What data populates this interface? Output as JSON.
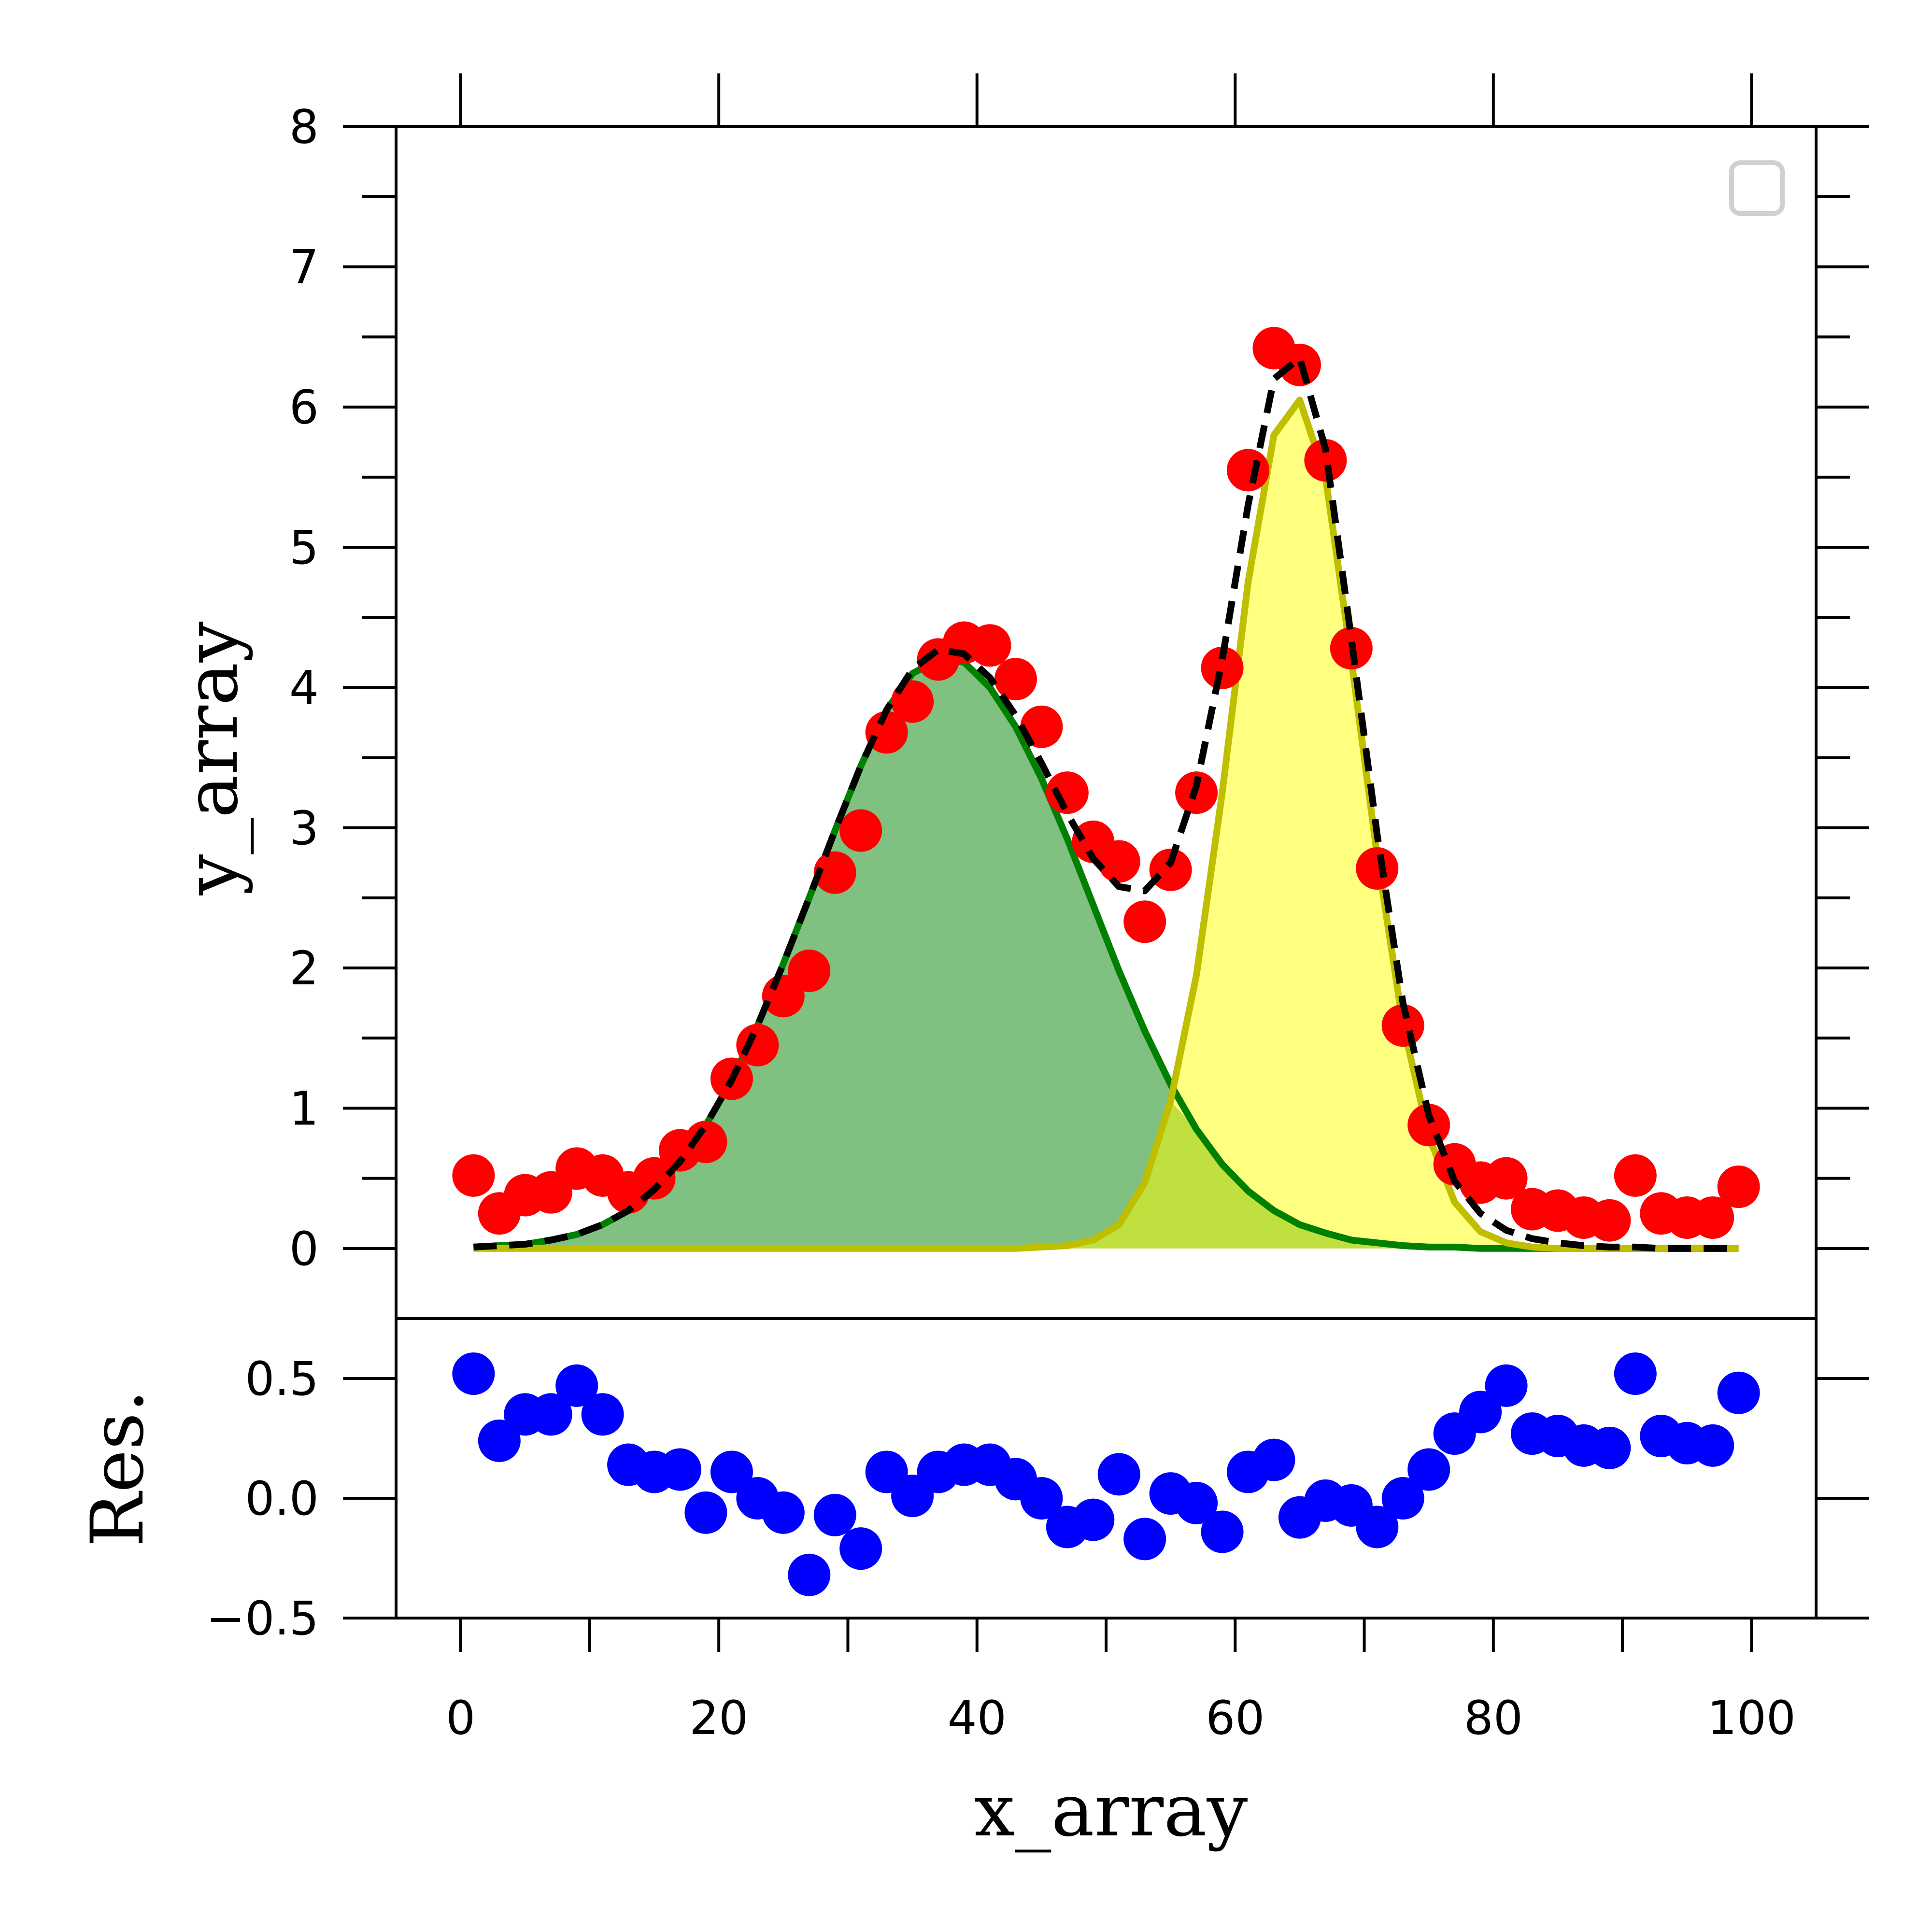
{
  "chart_data": [
    {
      "panel": "main",
      "type": "scatter",
      "xlabel": "",
      "ylabel": "y_array",
      "xlim": [
        -5,
        105
      ],
      "ylim": [
        -0.5,
        8
      ],
      "yticks": [
        0,
        1,
        2,
        3,
        4,
        5,
        6,
        7,
        8
      ],
      "ytick_labels": [
        "0",
        "1",
        "2",
        "3",
        "4",
        "5",
        "6",
        "7",
        "8"
      ],
      "xticks": [
        0,
        20,
        40,
        60,
        80,
        100
      ],
      "legend": "top-right, empty",
      "grid": false,
      "colors": {
        "data": "#ff0000",
        "total_fit": "#000000",
        "component_1_line": "#008000",
        "component_1_fill": "#80c080",
        "component_2_line": "#bfbf00",
        "component_2_fill": "#ffff80",
        "overlap_fill": "#c0e040"
      },
      "series": [
        {
          "style": "markers",
          "x": [
            1,
            3,
            5,
            7,
            9,
            11,
            13,
            15,
            17,
            19,
            21,
            23,
            25,
            27,
            29,
            31,
            33,
            35,
            37,
            39,
            41,
            43,
            45,
            47,
            49,
            51,
            53,
            55,
            57,
            59,
            61,
            63,
            65,
            67,
            69,
            71,
            73,
            75,
            77,
            79,
            81,
            83,
            85,
            87,
            89,
            91,
            93,
            95,
            97,
            99
          ],
          "y": [
            0.52,
            0.25,
            0.38,
            0.4,
            0.57,
            0.52,
            0.4,
            0.5,
            0.7,
            0.76,
            1.21,
            1.45,
            1.8,
            1.98,
            2.68,
            2.98,
            3.68,
            3.9,
            4.2,
            4.32,
            4.3,
            4.06,
            3.72,
            3.25,
            2.9,
            2.76,
            2.33,
            2.7,
            3.25,
            4.14,
            5.55,
            6.42,
            6.3,
            5.62,
            4.28,
            2.71,
            1.59,
            0.88,
            0.6,
            0.47,
            0.5,
            0.28,
            0.27,
            0.22,
            0.2,
            0.52,
            0.25,
            0.22,
            0.22,
            0.44
          ]
        },
        {
          "style": "dashed-line",
          "x": [
            1,
            3,
            5,
            7,
            9,
            11,
            13,
            15,
            17,
            19,
            21,
            23,
            25,
            27,
            29,
            31,
            33,
            35,
            37,
            39,
            41,
            43,
            45,
            47,
            49,
            51,
            53,
            55,
            57,
            59,
            61,
            63,
            65,
            67,
            69,
            71,
            73,
            75,
            77,
            79,
            81,
            83,
            85,
            87,
            89,
            91,
            93,
            95,
            97,
            99
          ],
          "y": [
            0.01,
            0.02,
            0.03,
            0.06,
            0.1,
            0.17,
            0.27,
            0.42,
            0.62,
            0.88,
            1.2,
            1.59,
            2.03,
            2.5,
            2.98,
            3.44,
            3.84,
            4.13,
            4.27,
            4.24,
            4.07,
            3.8,
            3.46,
            3.1,
            2.78,
            2.58,
            2.55,
            2.75,
            3.3,
            4.2,
            5.3,
            6.2,
            6.35,
            5.7,
            4.35,
            2.95,
            1.75,
            0.95,
            0.48,
            0.25,
            0.13,
            0.07,
            0.04,
            0.02,
            0.01,
            0.01,
            0.0,
            0.0,
            0.0,
            0.0
          ]
        },
        {
          "style": "line-filled",
          "x": [
            1,
            3,
            5,
            7,
            9,
            11,
            13,
            15,
            17,
            19,
            21,
            23,
            25,
            27,
            29,
            31,
            33,
            35,
            37,
            39,
            41,
            43,
            45,
            47,
            49,
            51,
            53,
            55,
            57,
            59,
            61,
            63,
            65,
            67,
            69,
            71,
            73,
            75,
            77,
            79,
            81,
            83,
            85,
            87,
            89,
            91,
            93,
            95,
            97,
            99
          ],
          "y": [
            0.01,
            0.02,
            0.03,
            0.06,
            0.1,
            0.17,
            0.27,
            0.42,
            0.62,
            0.88,
            1.2,
            1.59,
            2.03,
            2.5,
            2.98,
            3.44,
            3.84,
            4.1,
            4.2,
            4.18,
            4.0,
            3.72,
            3.35,
            2.92,
            2.45,
            1.98,
            1.55,
            1.17,
            0.85,
            0.6,
            0.41,
            0.27,
            0.17,
            0.11,
            0.06,
            0.04,
            0.02,
            0.01,
            0.01,
            0.0,
            0.0,
            0.0,
            0.0,
            0.0,
            0.0,
            0.0,
            0.0,
            0.0,
            0.0,
            0.0
          ]
        },
        {
          "style": "line-filled",
          "x": [
            1,
            3,
            5,
            7,
            9,
            11,
            13,
            15,
            17,
            19,
            21,
            23,
            25,
            27,
            29,
            31,
            33,
            35,
            37,
            39,
            41,
            43,
            45,
            47,
            49,
            51,
            53,
            55,
            57,
            59,
            61,
            63,
            65,
            67,
            69,
            71,
            73,
            75,
            77,
            79,
            81,
            83,
            85,
            87,
            89,
            91,
            93,
            95,
            97,
            99
          ],
          "y": [
            0.0,
            0.0,
            0.0,
            0.0,
            0.0,
            0.0,
            0.0,
            0.0,
            0.0,
            0.0,
            0.0,
            0.0,
            0.0,
            0.0,
            0.0,
            0.0,
            0.0,
            0.0,
            0.0,
            0.0,
            0.0,
            0.0,
            0.01,
            0.02,
            0.06,
            0.17,
            0.47,
            1.05,
            1.95,
            3.25,
            4.75,
            5.8,
            6.05,
            5.5,
            4.2,
            2.8,
            1.6,
            0.8,
            0.33,
            0.12,
            0.04,
            0.01,
            0.0,
            0.0,
            0.0,
            0.0,
            0.0,
            0.0,
            0.0,
            0.0
          ]
        }
      ]
    },
    {
      "panel": "residuals",
      "type": "scatter",
      "xlabel": "x_array",
      "ylabel": "Res.",
      "xlim": [
        -5,
        105
      ],
      "ylim": [
        -0.5,
        0.75
      ],
      "yticks": [
        -0.5,
        0.0,
        0.5
      ],
      "ytick_labels": [
        "−0.5",
        "0.0",
        "0.5"
      ],
      "xticks": [
        0,
        20,
        40,
        60,
        80,
        100
      ],
      "xtick_labels": [
        "0",
        "20",
        "40",
        "60",
        "80",
        "100"
      ],
      "grid": false,
      "colors": {
        "data": "#0000ff"
      },
      "series": [
        {
          "style": "markers",
          "x": [
            1,
            3,
            5,
            7,
            9,
            11,
            13,
            15,
            17,
            19,
            21,
            23,
            25,
            27,
            29,
            31,
            33,
            35,
            37,
            39,
            41,
            43,
            45,
            47,
            49,
            51,
            53,
            55,
            57,
            59,
            61,
            63,
            65,
            67,
            69,
            71,
            73,
            75,
            77,
            79,
            81,
            83,
            85,
            87,
            89,
            91,
            93,
            95,
            97,
            99
          ],
          "y": [
            0.52,
            0.24,
            0.35,
            0.35,
            0.47,
            0.35,
            0.14,
            0.11,
            0.12,
            -0.06,
            0.11,
            0.0,
            -0.06,
            -0.32,
            -0.07,
            -0.21,
            0.11,
            0.01,
            0.11,
            0.14,
            0.14,
            0.08,
            0.0,
            -0.12,
            -0.09,
            0.1,
            -0.17,
            0.02,
            -0.02,
            -0.14,
            0.11,
            0.16,
            -0.08,
            -0.01,
            -0.03,
            -0.12,
            0.0,
            0.12,
            0.27,
            0.36,
            0.47,
            0.27,
            0.26,
            0.22,
            0.21,
            0.52,
            0.26,
            0.23,
            0.22,
            0.44
          ]
        }
      ]
    }
  ]
}
